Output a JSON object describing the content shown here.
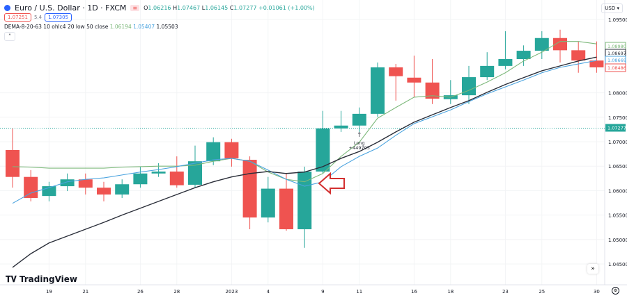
{
  "header": {
    "title": "Euro / U.S. Dollar · 1D · FXCM",
    "open_label": "O",
    "open": "1.06216",
    "high_label": "H",
    "high": "1.07467",
    "low_label": "L",
    "low": "1.06145",
    "close_label": "C",
    "close": "1.07277",
    "change": "+0.01061 (+1.00%)",
    "bid": "1.07251",
    "spread": "5.4",
    "ask": "1.07305",
    "indicator_name": "DEMA-8-20-63 10 ohlc4 20 low 50 close",
    "indicator_values": [
      "1.06194",
      "1.05407",
      "1.05503"
    ],
    "collapse_icon": "chevron-up-icon"
  },
  "currency_button": "USD ▾",
  "brand": "TradingView",
  "colors": {
    "up": "#26a69a",
    "down": "#ef5350",
    "ma_green": "#7cb87a",
    "ma_blue": "#4aa3df",
    "ma_black": "#2a2e39",
    "arrow": "#d32f2f"
  },
  "price_axis": {
    "ticks": [
      "1.09500",
      "1.08000",
      "1.07500",
      "1.07000",
      "1.06500",
      "1.06000",
      "1.05500",
      "1.05000",
      "1.04500"
    ],
    "labels": [
      {
        "text": "1.08980",
        "color": "#7cb87a"
      },
      {
        "text": "1.08697",
        "color": "#2a2e39"
      },
      {
        "text": "1.08669",
        "color": "#4aa3df"
      },
      {
        "text": "1.08486",
        "color": "#ef5350"
      }
    ],
    "current_price": "1.07277"
  },
  "time_axis": {
    "ticks": [
      {
        "label": "19",
        "i": 2
      },
      {
        "label": "21",
        "i": 4
      },
      {
        "label": "26",
        "i": 7
      },
      {
        "label": "28",
        "i": 9
      },
      {
        "label": "2023",
        "i": 12
      },
      {
        "label": "4",
        "i": 14
      },
      {
        "label": "9",
        "i": 17
      },
      {
        "label": "11",
        "i": 19
      },
      {
        "label": "16",
        "i": 22
      },
      {
        "label": "18",
        "i": 24
      },
      {
        "label": "23",
        "i": 27
      },
      {
        "label": "25",
        "i": 29
      },
      {
        "label": "30",
        "i": 32
      }
    ]
  },
  "trade_marker": {
    "label": "Long",
    "value": "+449703",
    "candle": 20
  },
  "annotation": {
    "type": "arrow-left",
    "candle": 17
  },
  "chart_data": {
    "type": "candlestick",
    "ylim": [
      1.0435,
      1.0965
    ],
    "candles": [
      [
        1.0683,
        1.0727,
        1.0606,
        1.0628
      ],
      [
        1.0628,
        1.0642,
        1.0578,
        1.0585
      ],
      [
        1.0589,
        1.0618,
        1.0578,
        1.0609
      ],
      [
        1.0609,
        1.0635,
        1.0599,
        1.0623
      ],
      [
        1.0623,
        1.0635,
        1.0592,
        1.0606
      ],
      [
        1.0606,
        1.0618,
        1.0578,
        1.0592
      ],
      [
        1.0592,
        1.0623,
        1.0585,
        1.0613
      ],
      [
        1.0613,
        1.0649,
        1.0606,
        1.0635
      ],
      [
        1.0635,
        1.0656,
        1.0628,
        1.0639
      ],
      [
        1.0639,
        1.067,
        1.0606,
        1.0611
      ],
      [
        1.0612,
        1.0692,
        1.0606,
        1.066
      ],
      [
        1.066,
        1.0709,
        1.0652,
        1.0699
      ],
      [
        1.0699,
        1.0706,
        1.0649,
        1.0666
      ],
      [
        1.0663,
        1.067,
        1.0521,
        1.0545
      ],
      [
        1.0545,
        1.0628,
        1.0535,
        1.0604
      ],
      [
        1.0604,
        1.0635,
        1.0518,
        1.0521
      ],
      [
        1.0521,
        1.0649,
        1.0483,
        1.0639
      ],
      [
        1.0639,
        1.0763,
        1.0635,
        1.0727
      ],
      [
        1.0727,
        1.0763,
        1.072,
        1.0733
      ],
      [
        1.0733,
        1.077,
        1.072,
        1.0757
      ],
      [
        1.0757,
        1.0862,
        1.0751,
        1.0852
      ],
      [
        1.0852,
        1.0859,
        1.0784,
        1.0834
      ],
      [
        1.0831,
        1.0876,
        1.0791,
        1.0821
      ],
      [
        1.0821,
        1.0869,
        1.0777,
        1.0788
      ],
      [
        1.0787,
        1.0826,
        1.0777,
        1.0795
      ],
      [
        1.0795,
        1.0855,
        1.0777,
        1.0832
      ],
      [
        1.0832,
        1.0883,
        1.0826,
        1.0855
      ],
      [
        1.0855,
        1.0926,
        1.0848,
        1.0869
      ],
      [
        1.0869,
        1.0897,
        1.0855,
        1.0886
      ],
      [
        1.0886,
        1.0926,
        1.0869,
        1.0912
      ],
      [
        1.0912,
        1.0929,
        1.0862,
        1.0887
      ],
      [
        1.0887,
        1.0905,
        1.0841,
        1.0866
      ],
      [
        1.0866,
        1.0905,
        1.0841,
        1.0852
      ]
    ],
    "series": [
      {
        "color": "#7cb87a",
        "values": [
          1.0649,
          1.0648,
          1.0646,
          1.0646,
          1.0646,
          1.0646,
          1.0648,
          1.0649,
          1.065,
          1.065,
          1.0652,
          1.066,
          1.0666,
          1.066,
          1.0638,
          1.0623,
          1.0618,
          1.0635,
          1.067,
          1.0699,
          1.0748,
          1.077,
          1.0791,
          1.0794,
          1.0791,
          1.0805,
          1.0822,
          1.0841,
          1.0865,
          1.0883,
          1.0905,
          1.0905,
          1.09
        ]
      },
      {
        "color": "#4aa3df",
        "values": [
          1.0574,
          1.0595,
          1.0606,
          1.0618,
          1.0623,
          1.0626,
          1.0632,
          1.0638,
          1.0643,
          1.0649,
          1.0656,
          1.0663,
          1.0666,
          1.066,
          1.0642,
          1.0623,
          1.0609,
          1.0618,
          1.0649,
          1.067,
          1.0687,
          1.0713,
          1.0737,
          1.0751,
          1.0765,
          1.0782,
          1.0798,
          1.0812,
          1.0826,
          1.0841,
          1.0852,
          1.0859,
          1.0866
        ]
      },
      {
        "color": "#2a2e39",
        "values": [
          1.0443,
          1.0471,
          1.0493,
          1.0507,
          1.0521,
          1.0535,
          1.055,
          1.0564,
          1.0578,
          1.0592,
          1.0606,
          1.0618,
          1.0628,
          1.0635,
          1.0639,
          1.0635,
          1.0638,
          1.0649,
          1.0666,
          1.068,
          1.0699,
          1.072,
          1.074,
          1.0755,
          1.077,
          1.0784,
          1.0801,
          1.0817,
          1.0831,
          1.0845,
          1.0855,
          1.0865,
          1.0873
        ]
      }
    ]
  }
}
